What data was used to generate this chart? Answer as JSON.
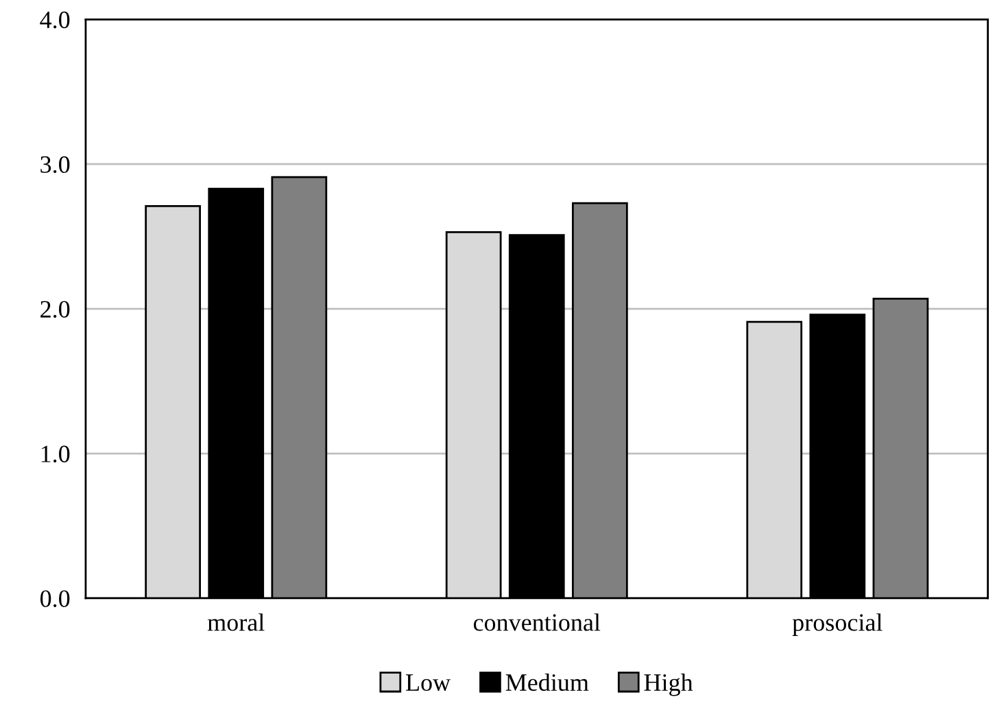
{
  "chart_data": {
    "type": "bar",
    "categories": [
      "moral",
      "conventional",
      "prosocial"
    ],
    "series": [
      {
        "name": "Low",
        "color": "#d9d9d9",
        "values": [
          2.71,
          2.53,
          1.91
        ]
      },
      {
        "name": "Medium",
        "color": "#000000",
        "values": [
          2.83,
          2.51,
          1.96
        ]
      },
      {
        "name": "High",
        "color": "#808080",
        "values": [
          2.91,
          2.73,
          2.07
        ]
      }
    ],
    "ylim": [
      0,
      4
    ],
    "yticks": [
      {
        "value": 0,
        "label": "0.0"
      },
      {
        "value": 1,
        "label": "1.0"
      },
      {
        "value": 2,
        "label": "2.0"
      },
      {
        "value": 3,
        "label": "3.0"
      },
      {
        "value": 4,
        "label": "4.0"
      }
    ],
    "grid": "y",
    "legend": "bottom"
  }
}
